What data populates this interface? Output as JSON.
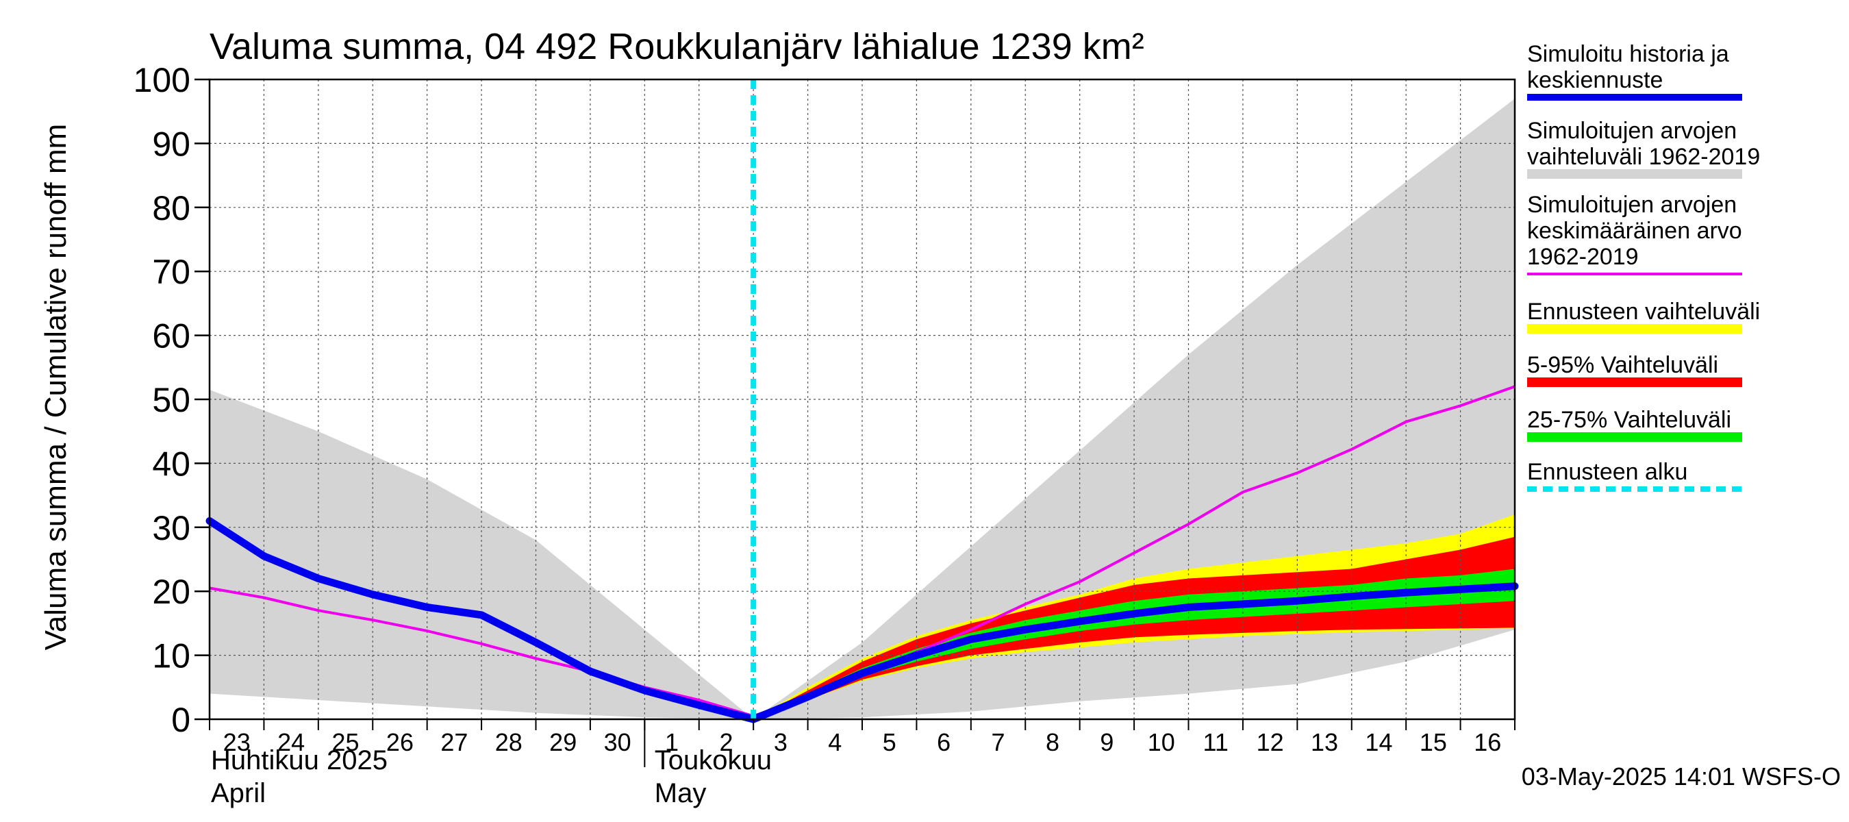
{
  "chart_data": {
    "type": "line",
    "title": "Valuma summa, 04 492 Roukkulanjärv lähialue 1239 km²",
    "ylabel": "Valuma summa / Cumulative runoff    mm",
    "ylim": [
      0,
      100
    ],
    "yticks": [
      0,
      10,
      20,
      30,
      40,
      50,
      60,
      70,
      80,
      90,
      100
    ],
    "x_range": [
      "2025-04-23",
      "2025-05-17"
    ],
    "x_tick_labels": [
      "23",
      "24",
      "25",
      "26",
      "27",
      "28",
      "29",
      "30",
      "1",
      "2",
      "3",
      "4",
      "5",
      "6",
      "7",
      "8",
      "9",
      "10",
      "11",
      "12",
      "13",
      "14",
      "15",
      "16"
    ],
    "month_labels": [
      {
        "fi": "Huhtikuu  2025",
        "en": "April"
      },
      {
        "fi": "Toukokuu",
        "en": "May"
      }
    ],
    "forecast_start": "2025-05-03",
    "timestamp": "03-May-2025 14:01 WSFS-O",
    "legend": [
      {
        "label": "Simuloitu historia ja\nkeskiennuste",
        "color": "#0000ee",
        "style": "thick"
      },
      {
        "label": "Simuloitujen arvojen\nvaihteluväli 1962-2019",
        "color": "#d4d4d4",
        "style": "band"
      },
      {
        "label": "Simuloitujen arvojen\nkeskimääräinen arvo\n   1962-2019",
        "color": "#ee00ee",
        "style": "line"
      },
      {
        "label": "Ennusteen vaihteluväli",
        "color": "#ffff00",
        "style": "band"
      },
      {
        "label": "5-95% Vaihteluväli",
        "color": "#ff0000",
        "style": "band"
      },
      {
        "label": "25-75% Vaihteluväli",
        "color": "#00ee00",
        "style": "band"
      },
      {
        "label": "Ennusteen alku",
        "color": "#00e5ee",
        "style": "dashed"
      }
    ],
    "series": [
      {
        "name": "Simuloitujen arvojen vaihteluväli 1962-2019 (max)",
        "color": "#d4d4d4",
        "x": [
          "2025-04-23",
          "2025-04-25",
          "2025-04-27",
          "2025-04-29",
          "2025-05-01",
          "2025-05-03",
          "2025-05-05",
          "2025-05-07",
          "2025-05-09",
          "2025-05-11",
          "2025-05-13",
          "2025-05-15",
          "2025-05-17"
        ],
        "y": [
          51.5,
          45,
          37.5,
          28,
          14,
          0,
          12,
          27,
          42,
          57,
          71,
          84,
          97
        ]
      },
      {
        "name": "Simuloitujen arvojen vaihteluväli 1962-2019 (min)",
        "color": "#d4d4d4",
        "x": [
          "2025-04-23",
          "2025-04-25",
          "2025-04-27",
          "2025-04-29",
          "2025-05-01",
          "2025-05-03",
          "2025-05-05",
          "2025-05-07",
          "2025-05-09",
          "2025-05-11",
          "2025-05-13",
          "2025-05-15",
          "2025-05-17"
        ],
        "y": [
          4,
          3,
          2,
          1,
          0.3,
          0,
          0.3,
          1.2,
          2.8,
          4,
          5.5,
          9,
          14
        ]
      },
      {
        "name": "Ennusteen vaihteluväli (max)",
        "color": "#ffff00",
        "x": [
          "2025-05-03",
          "2025-05-04",
          "2025-05-05",
          "2025-05-06",
          "2025-05-07",
          "2025-05-08",
          "2025-05-09",
          "2025-05-10",
          "2025-05-11",
          "2025-05-12",
          "2025-05-13",
          "2025-05-14",
          "2025-05-15",
          "2025-05-16",
          "2025-05-17"
        ],
        "y": [
          0,
          5,
          9.5,
          13,
          15.5,
          17.5,
          19.5,
          22,
          23.5,
          24.5,
          25.5,
          26.5,
          27.5,
          29,
          32
        ]
      },
      {
        "name": "Ennusteen vaihteluväli (min)",
        "color": "#ffff00",
        "x": [
          "2025-05-03",
          "2025-05-04",
          "2025-05-05",
          "2025-05-06",
          "2025-05-07",
          "2025-05-08",
          "2025-05-09",
          "2025-05-10",
          "2025-05-11",
          "2025-05-12",
          "2025-05-13",
          "2025-05-14",
          "2025-05-15",
          "2025-05-16",
          "2025-05-17"
        ],
        "y": [
          0,
          3,
          6,
          8,
          9.5,
          10.5,
          11.2,
          12,
          12.5,
          13,
          13.3,
          13.6,
          13.8,
          14,
          14.2
        ]
      },
      {
        "name": "5-95% Vaihteluväli (max)",
        "color": "#ff0000",
        "x": [
          "2025-05-03",
          "2025-05-04",
          "2025-05-05",
          "2025-05-06",
          "2025-05-07",
          "2025-05-08",
          "2025-05-09",
          "2025-05-10",
          "2025-05-11",
          "2025-05-12",
          "2025-05-13",
          "2025-05-14",
          "2025-05-15",
          "2025-05-16",
          "2025-05-17"
        ],
        "y": [
          0,
          4.5,
          9,
          12.5,
          15,
          17,
          19,
          21,
          22,
          22.5,
          23,
          23.5,
          25,
          26.5,
          28.5
        ]
      },
      {
        "name": "5-95% Vaihteluväli (min)",
        "color": "#ff0000",
        "x": [
          "2025-05-03",
          "2025-05-04",
          "2025-05-05",
          "2025-05-06",
          "2025-05-07",
          "2025-05-08",
          "2025-05-09",
          "2025-05-10",
          "2025-05-11",
          "2025-05-12",
          "2025-05-13",
          "2025-05-14",
          "2025-05-15",
          "2025-05-16",
          "2025-05-17"
        ],
        "y": [
          0,
          3,
          6.2,
          8.3,
          10,
          11,
          12,
          12.8,
          13.2,
          13.5,
          13.8,
          14,
          14.1,
          14.2,
          14.3
        ]
      },
      {
        "name": "25-75% Vaihteluväli (max)",
        "color": "#00ee00",
        "x": [
          "2025-05-03",
          "2025-05-04",
          "2025-05-05",
          "2025-05-06",
          "2025-05-07",
          "2025-05-08",
          "2025-05-09",
          "2025-05-10",
          "2025-05-11",
          "2025-05-12",
          "2025-05-13",
          "2025-05-14",
          "2025-05-15",
          "2025-05-16",
          "2025-05-17"
        ],
        "y": [
          0,
          4,
          8,
          11,
          13.5,
          15.5,
          17,
          18.5,
          19.5,
          20,
          20.5,
          21,
          22,
          22.5,
          23.5
        ]
      },
      {
        "name": "25-75% Vaihteluväli (min)",
        "color": "#00ee00",
        "x": [
          "2025-05-03",
          "2025-05-04",
          "2025-05-05",
          "2025-05-06",
          "2025-05-07",
          "2025-05-08",
          "2025-05-09",
          "2025-05-10",
          "2025-05-11",
          "2025-05-12",
          "2025-05-13",
          "2025-05-14",
          "2025-05-15",
          "2025-05-16",
          "2025-05-17"
        ],
        "y": [
          0,
          3.3,
          6.7,
          9,
          11,
          12.5,
          13.8,
          14.8,
          15.5,
          16,
          16.5,
          17,
          17.5,
          18,
          18.5
        ]
      },
      {
        "name": "Simuloitujen arvojen keskimääräinen arvo 1962-2019",
        "color": "#ee00ee",
        "x": [
          "2025-04-23",
          "2025-04-24",
          "2025-04-25",
          "2025-04-26",
          "2025-04-27",
          "2025-04-28",
          "2025-04-29",
          "2025-04-30",
          "2025-05-01",
          "2025-05-02",
          "2025-05-03",
          "2025-05-04",
          "2025-05-05",
          "2025-05-06",
          "2025-05-07",
          "2025-05-08",
          "2025-05-09",
          "2025-05-10",
          "2025-05-11",
          "2025-05-12",
          "2025-05-13",
          "2025-05-14",
          "2025-05-15",
          "2025-05-16",
          "2025-05-17"
        ],
        "y": [
          20.5,
          19,
          17,
          15.5,
          13.8,
          11.8,
          9.5,
          7.5,
          5,
          3,
          0.5,
          3.5,
          7,
          10.5,
          14,
          18,
          21.5,
          26,
          30.5,
          35.5,
          38.5,
          42.2,
          46.5,
          49,
          52
        ]
      },
      {
        "name": "Simuloitu historia ja keskiennuste",
        "color": "#0000ee",
        "x": [
          "2025-04-23",
          "2025-04-24",
          "2025-04-25",
          "2025-04-26",
          "2025-04-27",
          "2025-04-28",
          "2025-04-29",
          "2025-04-30",
          "2025-05-01",
          "2025-05-02",
          "2025-05-03",
          "2025-05-04",
          "2025-05-05",
          "2025-05-06",
          "2025-05-07",
          "2025-05-08",
          "2025-05-09",
          "2025-05-10",
          "2025-05-11",
          "2025-05-12",
          "2025-05-13",
          "2025-05-14",
          "2025-05-15",
          "2025-05-16",
          "2025-05-17"
        ],
        "y": [
          31,
          25.5,
          22,
          19.5,
          17.5,
          16.3,
          12,
          7.5,
          4.5,
          2.2,
          0,
          3.5,
          7.2,
          10,
          12.5,
          14,
          15.3,
          16.5,
          17.5,
          18,
          18.5,
          19.2,
          19.8,
          20.3,
          20.8
        ]
      }
    ]
  }
}
